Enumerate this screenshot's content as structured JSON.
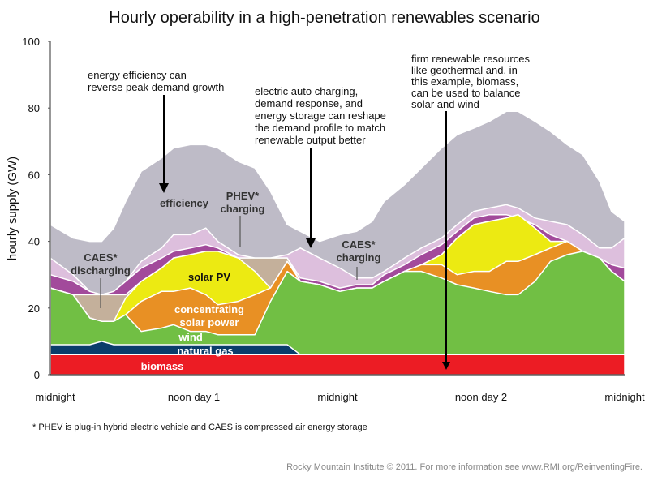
{
  "chart_data": {
    "type": "area",
    "title": "Hourly operability in a high-penetration renewables scenario",
    "ylabel": "hourly supply (GW)",
    "xlabel": "",
    "ylim": [
      0,
      100
    ],
    "yticks": [
      "0",
      "20",
      "40",
      "60",
      "80",
      "100"
    ],
    "xlim_hours": [
      0,
      48
    ],
    "xticks": [
      {
        "hour": 0,
        "label": "midnight"
      },
      {
        "hour": 12,
        "label": "noon day 1"
      },
      {
        "hour": 24,
        "label": "midnight"
      },
      {
        "hour": 36,
        "label": "noon day 2"
      },
      {
        "hour": 48,
        "label": "midnight"
      }
    ],
    "x_hours": [
      0,
      1.9,
      3.3,
      4.3,
      5.3,
      6.3,
      7.6,
      9.3,
      10.3,
      11.7,
      13,
      14,
      15.7,
      17.1,
      18.4,
      19.8,
      20.9,
      22.5,
      24.2,
      25.6,
      26.9,
      27.9,
      29.6,
      31,
      32.7,
      34,
      35.4,
      36.7,
      38.1,
      39.1,
      40.5,
      41.8,
      43.2,
      44.5,
      45.9,
      46.9,
      48
    ],
    "series": [
      {
        "name": "biomass",
        "label": "biomass",
        "color": "#ec1c24",
        "top": [
          6,
          6,
          6,
          6,
          6,
          6,
          6,
          6,
          6,
          6,
          6,
          6,
          6,
          6,
          6,
          6,
          6,
          6,
          6,
          6,
          6,
          6,
          6,
          6,
          6,
          6,
          6,
          6,
          6,
          6,
          6,
          6,
          6,
          6,
          6,
          6,
          6
        ]
      },
      {
        "name": "natural gas",
        "label": "natural gas",
        "color": "#0a3d6b",
        "top": [
          9,
          9,
          9,
          10,
          9,
          9,
          9,
          9,
          9,
          9,
          9,
          9,
          9,
          9,
          9,
          9,
          6,
          6,
          6,
          6,
          6,
          6,
          6,
          6,
          6,
          6,
          6,
          6,
          6,
          6,
          6,
          6,
          6,
          6,
          6,
          6,
          6
        ]
      },
      {
        "name": "wind",
        "label": "wind",
        "color": "#71bf44",
        "top": [
          26,
          24,
          17,
          16,
          16,
          18,
          13,
          14,
          15,
          13,
          13,
          12,
          12,
          12,
          22,
          31,
          28,
          27,
          25,
          26,
          26,
          28,
          31,
          31,
          29,
          27,
          26,
          25,
          24,
          24,
          28,
          34,
          36,
          37,
          35,
          31,
          28
        ]
      },
      {
        "name": "concentrating solar power",
        "label": "concentrating\nsolar power",
        "color": "#e89024",
        "top": [
          26,
          24,
          17,
          16,
          16,
          18,
          22,
          25,
          25,
          26,
          24,
          21,
          22,
          24,
          26,
          34,
          28,
          27,
          25,
          26,
          26,
          28,
          31,
          33,
          33,
          30,
          31,
          31,
          34,
          34,
          36,
          38,
          40,
          37,
          35,
          31,
          28
        ]
      },
      {
        "name": "solar PV",
        "label": "solar PV",
        "color": "#ecea12",
        "top": [
          26,
          24,
          17,
          16,
          16,
          23,
          28,
          32,
          35,
          36,
          37,
          37,
          35,
          31,
          26,
          34,
          28,
          27,
          25,
          26,
          26,
          28,
          31,
          33,
          36,
          41,
          45,
          46,
          47,
          48,
          44,
          40,
          40,
          37,
          35,
          31,
          28
        ]
      },
      {
        "name": "CAES discharging",
        "label": "CAES*\ndischarging",
        "color": "#c4b09b",
        "top": [
          26,
          24,
          24,
          24,
          24,
          24,
          28,
          32,
          35,
          36,
          37,
          37,
          35,
          35,
          35,
          35,
          28,
          27,
          25,
          26,
          26,
          28,
          31,
          33,
          36,
          41,
          45,
          46,
          47,
          48,
          44,
          40,
          40,
          37,
          35,
          31,
          28
        ]
      },
      {
        "name": "PHEV charging",
        "label": "PHEV*\ncharging",
        "color": "#a24a9b",
        "top": [
          30,
          28,
          25,
          24,
          25,
          28,
          32,
          35,
          37,
          38,
          39,
          38,
          35,
          35,
          35,
          35,
          29,
          28,
          26,
          27,
          27,
          30,
          33,
          36,
          39,
          43,
          47,
          48,
          48,
          47,
          45,
          42,
          40,
          37,
          35,
          33,
          32
        ]
      },
      {
        "name": "CAES charging",
        "label": "CAES*\ncharging",
        "color": "#ddbfdd",
        "top": [
          35,
          30,
          25,
          24,
          25,
          28,
          34,
          38,
          42,
          42,
          44,
          40,
          36,
          35,
          35,
          36,
          38,
          35,
          32,
          29,
          29,
          31,
          35,
          38,
          41,
          45,
          49,
          50,
          51,
          50,
          47,
          46,
          45,
          42,
          38,
          38,
          41
        ]
      },
      {
        "name": "efficiency",
        "label": "efficiency",
        "color": "#bebbc7",
        "top": [
          45,
          41,
          40,
          40,
          44,
          52,
          61,
          65,
          68,
          69,
          69,
          68,
          64,
          62,
          55,
          45,
          43,
          40,
          42,
          43,
          46,
          52,
          57,
          62,
          68,
          72,
          74,
          76,
          79,
          79,
          76,
          73,
          69,
          66,
          58,
          49,
          46
        ]
      }
    ],
    "annotations": [
      {
        "id": "efficiency-note",
        "lines": [
          "energy efficiency can",
          "reverse peak demand growth"
        ]
      },
      {
        "id": "demand-note",
        "lines": [
          "electric auto charging,",
          "demand response, and",
          "energy storage can reshape",
          "the demand profile to match",
          "renewable output better"
        ]
      },
      {
        "id": "firm-note",
        "lines": [
          "firm renewable resources",
          "like geothermal and, in",
          "this example, biomass,",
          "can be used to balance",
          "solar and wind"
        ]
      }
    ]
  },
  "footnote": "* PHEV is plug-in hybrid electric vehicle and CAES is compressed air energy storage",
  "credit": "Rocky Mountain Institute © 2011. For more information see www.RMI.org/ReinventingFire."
}
